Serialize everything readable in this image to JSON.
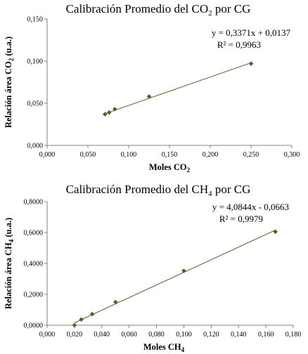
{
  "chart_data": [
    {
      "type": "scatter",
      "title_pre": "Calibración Promedio del CO",
      "title_sub": "2",
      "title_post": " por CG",
      "xlabel_pre": "Moles CO",
      "xlabel_sub": "2",
      "ylabel_pre": "Relación área CO",
      "ylabel_sub": "2",
      "ylabel_post": " (u.a.)",
      "xlim": [
        0,
        0.3
      ],
      "ylim": [
        0,
        0.15
      ],
      "xticks": [
        0,
        0.05,
        0.1,
        0.15,
        0.2,
        0.25,
        0.3
      ],
      "yticks": [
        0,
        0.05,
        0.1,
        0.15
      ],
      "xtick_labels": [
        "0,000",
        "0,050",
        "0,100",
        "0,150",
        "0,200",
        "0,250",
        "0,300"
      ],
      "ytick_labels": [
        "0,000",
        "0,050",
        "0,100",
        "0,150"
      ],
      "x": [
        0.071,
        0.076,
        0.083,
        0.125,
        0.25
      ],
      "y": [
        0.037,
        0.039,
        0.043,
        0.058,
        0.097
      ],
      "trendline": {
        "slope": 0.3371,
        "intercept": 0.0137,
        "x_range": [
          0.071,
          0.25
        ]
      },
      "equation": "y = 0,3371x + 0,0137",
      "r2": "R² = 0,9963",
      "marker_color": "#4f6228",
      "line_color": "#4f6228",
      "grid": false
    },
    {
      "type": "scatter",
      "title_pre": "Calibración Promedio del CH",
      "title_sub": "4",
      "title_post": " por CG",
      "xlabel_pre": "Moles CH",
      "xlabel_sub": "4",
      "ylabel_pre": "Relación área CH",
      "ylabel_sub": "4",
      "ylabel_post": " (u.a.)",
      "xlim": [
        0,
        0.18
      ],
      "ylim": [
        0,
        0.8
      ],
      "xticks": [
        0,
        0.02,
        0.04,
        0.06,
        0.08,
        0.1,
        0.12,
        0.14,
        0.16,
        0.18
      ],
      "yticks": [
        0,
        0.2,
        0.4,
        0.6,
        0.8
      ],
      "xtick_labels": [
        "0,000",
        "0,020",
        "0,040",
        "0,060",
        "0,080",
        "0,100",
        "0,120",
        "0,140",
        "0,160",
        "0,180"
      ],
      "ytick_labels": [
        "0,0000",
        "0,2000",
        "0,4000",
        "0,6000",
        "0,8000"
      ],
      "x": [
        0.02,
        0.025,
        0.033,
        0.05,
        0.1,
        0.167
      ],
      "y": [
        0.0,
        0.037,
        0.072,
        0.15,
        0.352,
        0.605
      ],
      "trendline": {
        "slope": 4.0844,
        "intercept": -0.0663,
        "x_range": [
          0.02,
          0.167
        ]
      },
      "equation": "y = 4,0844x - 0,0663",
      "r2": "R² = 0,9979",
      "marker_color": "#4f6228",
      "line_color": "#4f6228",
      "grid": false
    }
  ]
}
